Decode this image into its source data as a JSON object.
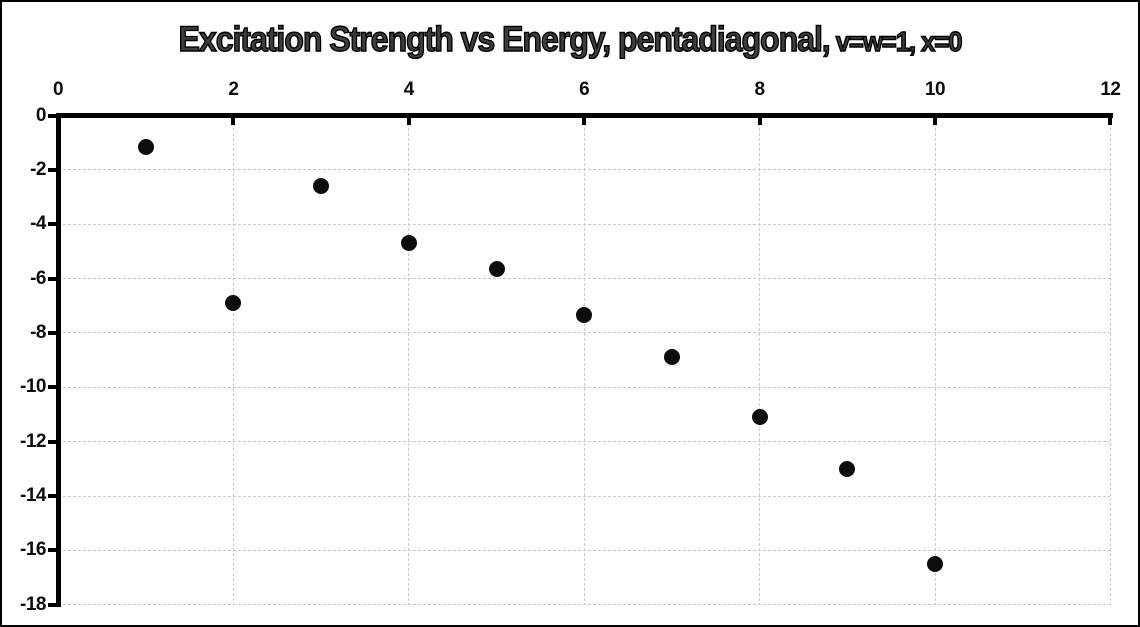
{
  "title": {
    "main": "Excitation Strength vs Energy, pentadiagonal,",
    "suffix": " v=w=1, x=0"
  },
  "chart_data": {
    "type": "scatter",
    "title": "Excitation Strength vs Energy, pentadiagonal, v=w=1, x=0",
    "xlabel": "",
    "ylabel": "",
    "x": [
      1,
      2,
      3,
      4,
      5,
      6,
      7,
      8,
      9,
      10
    ],
    "y": [
      -1.15,
      -6.9,
      -2.6,
      -4.7,
      -5.65,
      -7.35,
      -8.9,
      -11.1,
      -13.0,
      -16.5
    ],
    "xlim": [
      0,
      12
    ],
    "ylim": [
      -18,
      0
    ],
    "x_ticks": [
      0,
      2,
      4,
      6,
      8,
      10,
      12
    ],
    "y_ticks": [
      0,
      -2,
      -4,
      -6,
      -8,
      -10,
      -12,
      -14,
      -16,
      -18
    ],
    "x_axis_position": "top",
    "grid": true,
    "grid_style": "dashed",
    "legend": "none",
    "marker_color": "#0d0d0d",
    "axis_color": "#000000",
    "gridline_color": "#c9c9c9",
    "title_fill_color": "#3d3d3d"
  }
}
